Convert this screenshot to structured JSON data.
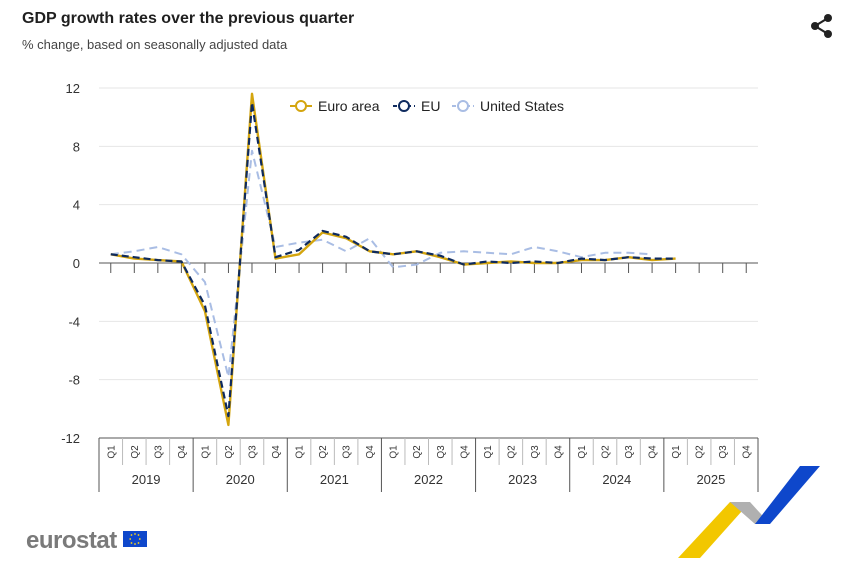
{
  "header": {
    "title": "GDP growth rates over the previous quarter",
    "subtitle": "% change, based on seasonally adjusted data"
  },
  "icons": {
    "share": "share-icon"
  },
  "footer": {
    "brand": "eurostat",
    "flag": "eu-flag-icon"
  },
  "colors": {
    "euro_area": "#d4a50e",
    "eu": "#0e2a5e",
    "us": "#a9bde4",
    "grid": "#e6e6e6",
    "axis": "#555555"
  },
  "chart_data": {
    "type": "line",
    "ylim": [
      -12,
      12
    ],
    "yticks": [
      "12",
      "8",
      "4",
      "0",
      "-4",
      "-8",
      "-12"
    ],
    "ytick_values": [
      12,
      8,
      4,
      0,
      -4,
      -8,
      -12
    ],
    "grid": true,
    "legend_position": "top-center",
    "quarters": [
      "Q1",
      "Q2",
      "Q3",
      "Q4",
      "Q1",
      "Q2",
      "Q3",
      "Q4",
      "Q1",
      "Q2",
      "Q3",
      "Q4",
      "Q1",
      "Q2",
      "Q3",
      "Q4",
      "Q1",
      "Q2",
      "Q3",
      "Q4",
      "Q1",
      "Q2",
      "Q3",
      "Q4",
      "Q1",
      "Q2",
      "Q3",
      "Q4"
    ],
    "years": [
      "2019",
      "2020",
      "2021",
      "2022",
      "2023",
      "2024",
      "2025"
    ],
    "series": [
      {
        "name": "Euro area",
        "style": "solid",
        "values": [
          0.6,
          0.3,
          0.2,
          0.1,
          -3.3,
          -11.1,
          11.6,
          0.3,
          0.6,
          2.1,
          1.7,
          0.8,
          0.6,
          0.8,
          0.4,
          -0.1,
          0.0,
          0.1,
          0.0,
          0.0,
          0.2,
          0.2,
          0.4,
          0.2,
          0.3,
          null,
          null,
          null
        ]
      },
      {
        "name": "EU",
        "style": "dash",
        "values": [
          0.6,
          0.4,
          0.2,
          0.1,
          -2.9,
          -10.5,
          11.0,
          0.4,
          0.9,
          2.2,
          1.8,
          0.8,
          0.6,
          0.8,
          0.5,
          -0.1,
          0.1,
          0.0,
          0.1,
          0.0,
          0.3,
          0.2,
          0.4,
          0.3,
          0.3,
          null,
          null,
          null
        ]
      },
      {
        "name": "United States",
        "style": "dash",
        "values": [
          0.6,
          0.8,
          1.1,
          0.6,
          -1.3,
          -7.8,
          7.7,
          1.1,
          1.4,
          1.6,
          0.8,
          1.7,
          -0.3,
          -0.1,
          0.7,
          0.8,
          0.7,
          0.6,
          1.1,
          0.8,
          0.4,
          0.7,
          0.7,
          0.6,
          null,
          null,
          null,
          null
        ]
      }
    ]
  }
}
